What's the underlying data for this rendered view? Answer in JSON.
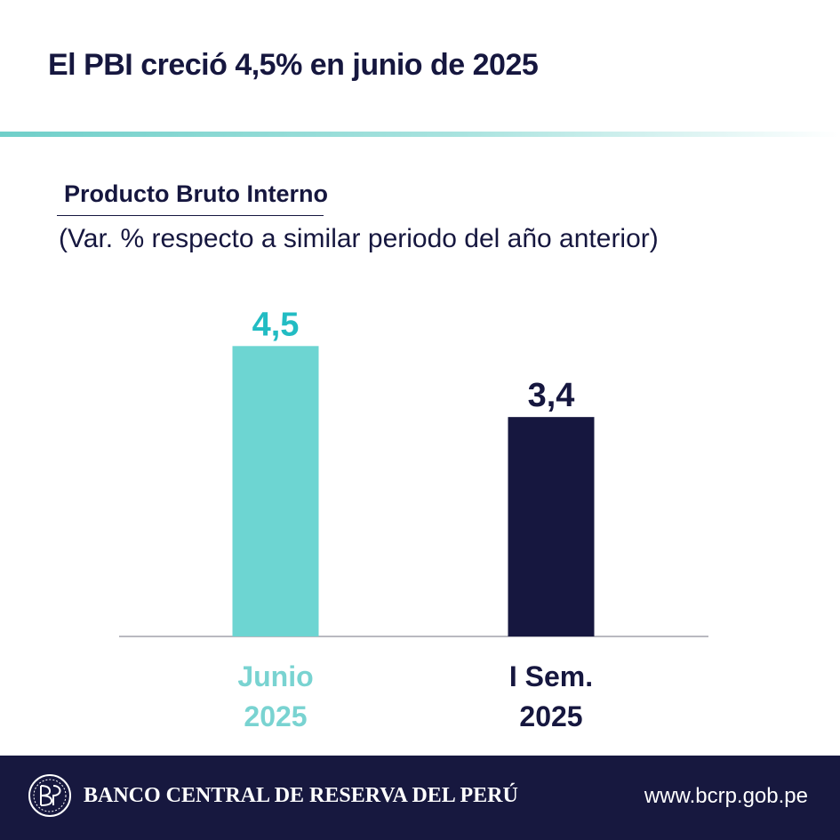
{
  "headline": "El PBI creció 4,5% en junio de 2025",
  "colors": {
    "navy": "#16173f",
    "teal_bar": "#6dd5d2",
    "teal_text": "#22bcc3",
    "teal_label": "#79d3d1",
    "footer_bg": "#17183f"
  },
  "chart_data": {
    "type": "bar",
    "title": "Producto Bruto Interno",
    "subtitle": "(Var. % respecto a similar periodo del año anterior)",
    "categories": [
      [
        "Junio",
        "2025"
      ],
      [
        "I Sem.",
        "2025"
      ]
    ],
    "values": [
      4.5,
      3.4
    ],
    "value_labels": [
      "4,5",
      "3,4"
    ],
    "bar_colors": [
      "#6dd5d2",
      "#16173f"
    ],
    "value_label_colors": [
      "#22bcc3",
      "#16173f"
    ],
    "category_label_colors": [
      "#79d3d1",
      "#16173f"
    ],
    "ylim": [
      0,
      5
    ],
    "grid": false,
    "legend": "none"
  },
  "footer": {
    "logo_icon": "bcrp-seal-icon",
    "bank_name": "BANCO CENTRAL DE RESERVA DEL PERÚ",
    "url": "www.bcrp.gob.pe"
  }
}
